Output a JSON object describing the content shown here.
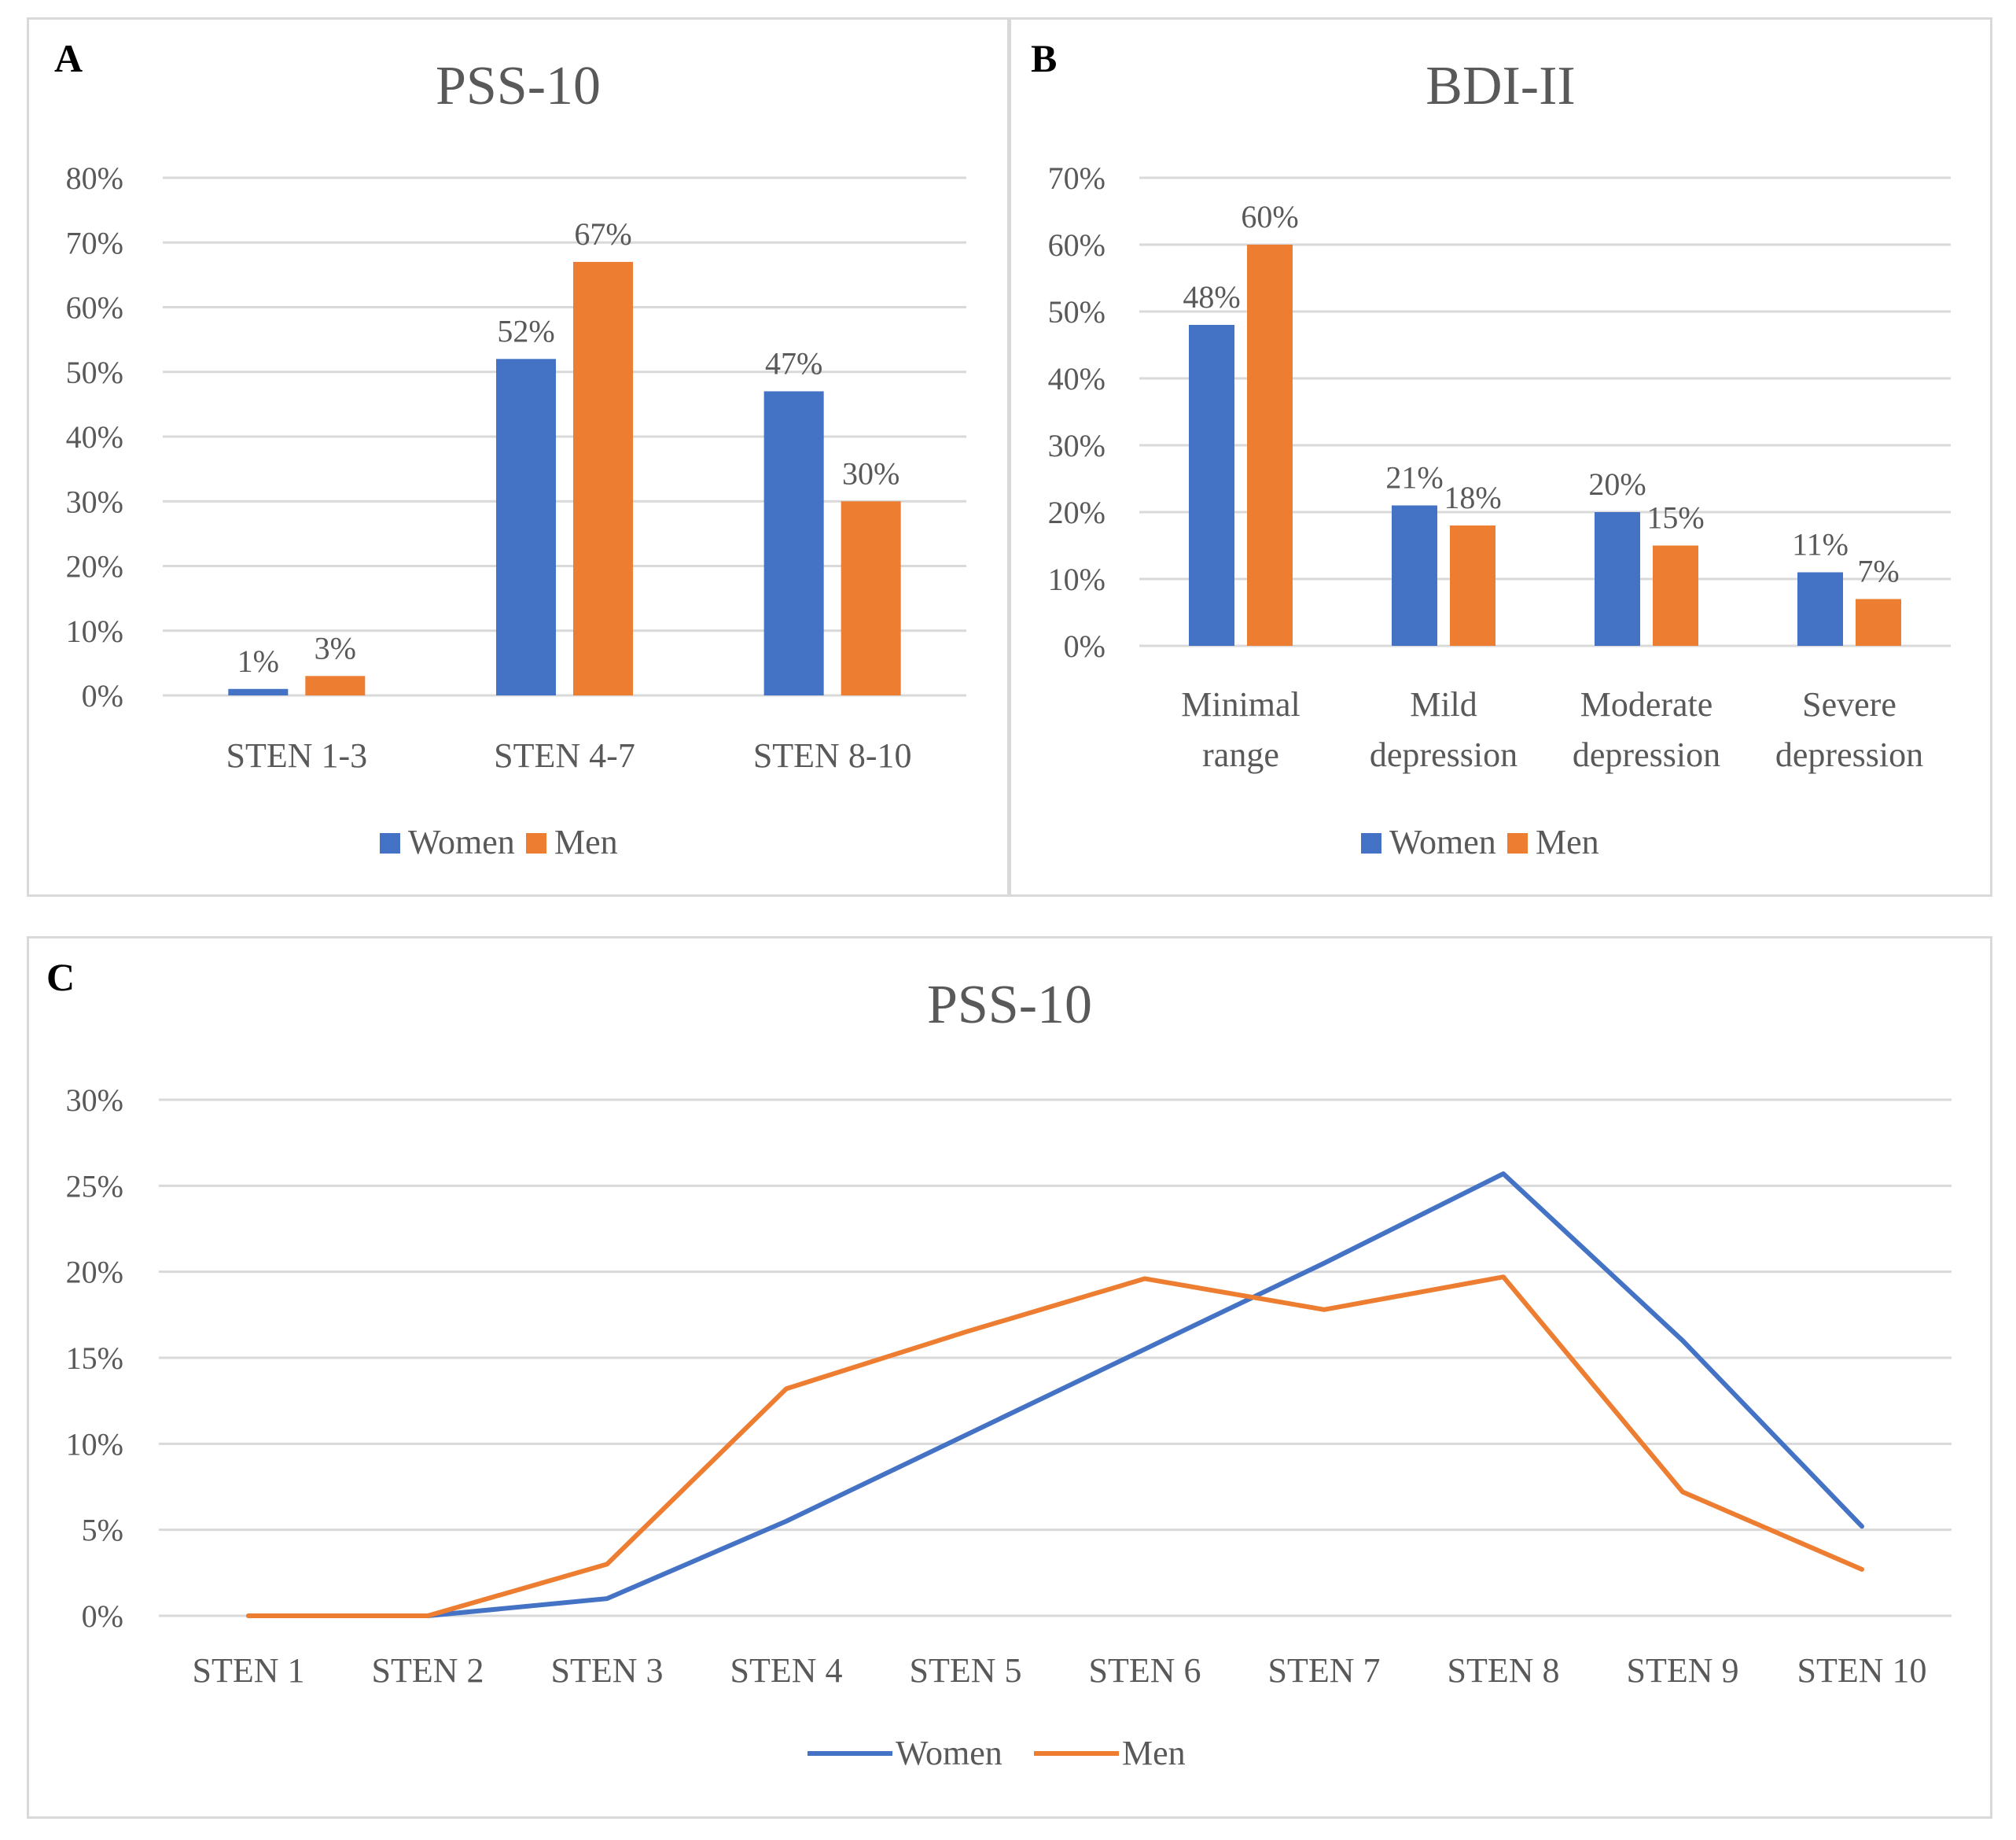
{
  "colors": {
    "women": "#4472C4",
    "men": "#ED7D31",
    "grid": "#d9d9d9",
    "text": "#595959"
  },
  "chart_data": [
    {
      "panel_label": "A",
      "type": "bar",
      "title": "PSS-10",
      "categories": [
        "STEN 1-3",
        "STEN 4-7",
        "STEN 8-10"
      ],
      "series": [
        {
          "name": "Women",
          "values": [
            1,
            52,
            47
          ],
          "labels": [
            "1%",
            "52%",
            "47%"
          ]
        },
        {
          "name": "Men",
          "values": [
            3,
            67,
            30
          ],
          "labels": [
            "3%",
            "67%",
            "30%"
          ]
        }
      ],
      "ylim": [
        0,
        80
      ],
      "yticks": [
        "0%",
        "10%",
        "20%",
        "30%",
        "40%",
        "50%",
        "60%",
        "70%",
        "80%"
      ],
      "grid": true,
      "legend": "bottom"
    },
    {
      "panel_label": "B",
      "type": "bar",
      "title": "BDI-II",
      "categories": [
        [
          "Minimal",
          "range"
        ],
        [
          "Mild",
          "depression"
        ],
        [
          "Moderate",
          "depression"
        ],
        [
          "Severe",
          "depression"
        ]
      ],
      "series": [
        {
          "name": "Women",
          "values": [
            48,
            21,
            20,
            11
          ],
          "labels": [
            "48%",
            "21%",
            "20%",
            "11%"
          ]
        },
        {
          "name": "Men",
          "values": [
            60,
            18,
            15,
            7
          ],
          "labels": [
            "60%",
            "18%",
            "15%",
            "7%"
          ]
        }
      ],
      "ylim": [
        0,
        70
      ],
      "yticks": [
        "0%",
        "10%",
        "20%",
        "30%",
        "40%",
        "50%",
        "60%",
        "70%"
      ],
      "grid": true,
      "legend": "bottom"
    },
    {
      "panel_label": "C",
      "type": "line",
      "title": "PSS-10",
      "categories": [
        "STEN 1",
        "STEN 2",
        "STEN 3",
        "STEN 4",
        "STEN 5",
        "STEN 6",
        "STEN 7",
        "STEN 8",
        "STEN 9",
        "STEN 10"
      ],
      "series": [
        {
          "name": "Women",
          "values": [
            0,
            0,
            1,
            5.5,
            10.5,
            15.5,
            20.5,
            25.7,
            16,
            5.2
          ]
        },
        {
          "name": "Men",
          "values": [
            0,
            0,
            3,
            13.2,
            16.5,
            19.6,
            17.8,
            19.7,
            7.2,
            2.7
          ]
        }
      ],
      "ylim": [
        0,
        30
      ],
      "yticks": [
        "0%",
        "5%",
        "10%",
        "15%",
        "20%",
        "25%",
        "30%"
      ],
      "grid": true,
      "legend": "bottom"
    }
  ]
}
